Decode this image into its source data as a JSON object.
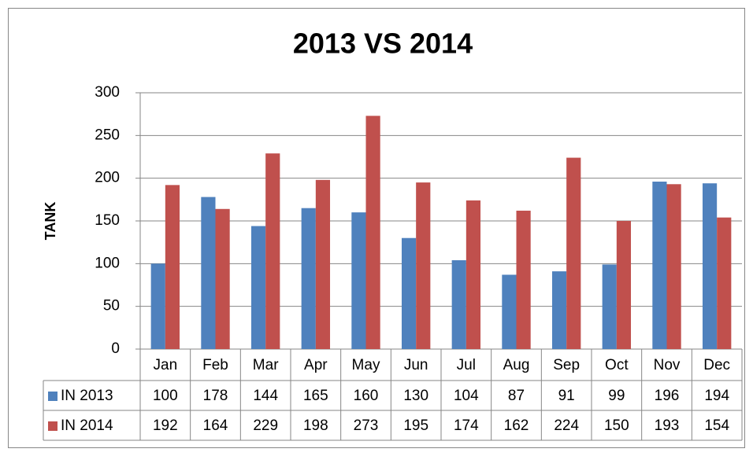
{
  "chart_data": {
    "type": "bar",
    "title": "2013 VS 2014",
    "y_label": "TANK",
    "categories": [
      "Jan",
      "Feb",
      "Mar",
      "Apr",
      "May",
      "Jun",
      "Jul",
      "Aug",
      "Sep",
      "Oct",
      "Nov",
      "Dec"
    ],
    "series": [
      {
        "name": "IN 2013",
        "color": "#4f81bd",
        "values": [
          100,
          178,
          144,
          165,
          160,
          130,
          104,
          87,
          91,
          99,
          196,
          194
        ]
      },
      {
        "name": "IN 2014",
        "color": "#c0504d",
        "values": [
          192,
          164,
          229,
          198,
          273,
          195,
          174,
          162,
          224,
          150,
          193,
          154
        ]
      }
    ],
    "ylim": [
      0,
      300
    ],
    "yticks": [
      0,
      50,
      100,
      150,
      200,
      250,
      300
    ],
    "grid": true,
    "data_table": true
  }
}
